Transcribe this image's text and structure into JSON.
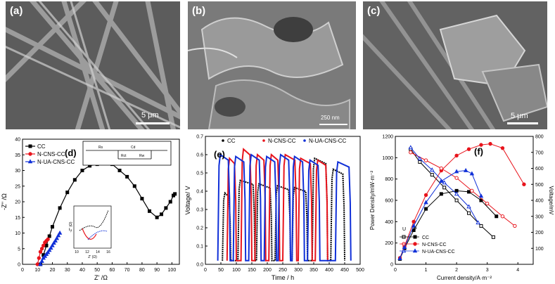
{
  "panels": {
    "a": {
      "label": "(a)",
      "scale": "5 μm"
    },
    "b": {
      "label": "(b)",
      "scale": "250 nm"
    },
    "c": {
      "label": "(c)",
      "scale": "5 μm"
    }
  },
  "chart_data": [
    {
      "panel": "(d)",
      "type": "line",
      "xlabel": "Z' /Ω",
      "ylabel": "-Z'' /Ω",
      "xlim": [
        0,
        105
      ],
      "ylim": [
        0,
        40
      ],
      "xticks": [
        "0",
        "10",
        "20",
        "30",
        "40",
        "50",
        "60",
        "70",
        "80",
        "90",
        "100"
      ],
      "yticks": [
        "0",
        "5",
        "10",
        "15",
        "20",
        "25",
        "30",
        "35",
        "40"
      ],
      "circuit_labels": [
        "Rs",
        "Cd",
        "Rct",
        "Rw"
      ],
      "series": [
        {
          "name": "CC",
          "color": "#000000",
          "marker": "square",
          "x": [
            12,
            14,
            16,
            18,
            20,
            25,
            30,
            35,
            40,
            45,
            50,
            55,
            60,
            65,
            70,
            75,
            80,
            85,
            90,
            93,
            96,
            99,
            101,
            102
          ],
          "y": [
            0,
            3,
            6,
            9,
            12,
            18,
            23,
            27,
            30,
            31.5,
            32,
            32.5,
            32,
            30,
            28,
            25,
            21,
            17,
            15,
            16,
            18,
            20,
            22,
            22.5
          ]
        },
        {
          "name": "N-CNS-CC",
          "color": "#e8141c",
          "marker": "circle",
          "x": [
            10,
            11,
            12,
            13,
            14,
            15,
            16,
            17
          ],
          "y": [
            0,
            2,
            4,
            5,
            6,
            7,
            7.5,
            8
          ]
        },
        {
          "name": "N-UA-CNS-CC",
          "color": "#1030d8",
          "marker": "triangle",
          "x": [
            12,
            13,
            14,
            15,
            16,
            17,
            18,
            19,
            20,
            21,
            22,
            23,
            24,
            25
          ],
          "y": [
            0,
            1,
            2,
            2.6,
            3.2,
            3.8,
            4.5,
            5.2,
            6,
            6.8,
            7.5,
            8.3,
            9.2,
            10
          ]
        }
      ],
      "inset": {
        "xlabel": "Z' (Ω)",
        "ylabel": "-Z'' (Ω)",
        "xticks": [
          "10",
          "12",
          "14",
          "16"
        ]
      }
    },
    {
      "panel": "(e)",
      "type": "line",
      "xlabel": "Time / h",
      "ylabel": "Voltage/ V",
      "xlim": [
        0,
        500
      ],
      "ylim": [
        0,
        0.7
      ],
      "xticks": [
        "0",
        "50",
        "100",
        "150",
        "200",
        "250",
        "300",
        "350",
        "400",
        "450",
        "500"
      ],
      "yticks": [
        "0.0",
        "0.1",
        "0.2",
        "0.3",
        "0.4",
        "0.5",
        "0.6",
        "0.7"
      ],
      "series": [
        {
          "name": "CC",
          "color": "#000000"
        },
        {
          "name": "N-CNS-CC",
          "color": "#e8141c"
        },
        {
          "name": "N-UA-CNS-CC",
          "color": "#1030d8"
        }
      ]
    },
    {
      "panel": "(f)",
      "type": "line",
      "xlabel": "Current density/A·m⁻²",
      "ylabel": "Power Density/mW·m⁻²",
      "ylabel2": "Voltage/mV",
      "xlim": [
        0,
        4.5
      ],
      "ylim": [
        0,
        1200
      ],
      "ylim2": [
        0,
        800
      ],
      "xticks": [
        "0",
        "1",
        "2",
        "3",
        "4"
      ],
      "yticks": [
        "0",
        "200",
        "400",
        "600",
        "800",
        "1000",
        "1200"
      ],
      "yticks2": [
        "100",
        "200",
        "300",
        "400",
        "500",
        "600",
        "700",
        "800"
      ],
      "legend_header": [
        "U",
        "P"
      ],
      "series": [
        {
          "name": "CC",
          "color": "#000000",
          "power_x": [
            0.15,
            0.3,
            0.6,
            1.0,
            1.5,
            2.0,
            2.4,
            2.8,
            3.3
          ],
          "power_y": [
            50,
            150,
            320,
            520,
            660,
            690,
            680,
            600,
            450
          ],
          "voltage_x": [
            0.5,
            0.8,
            1.2,
            1.6,
            2.0,
            2.4,
            2.8,
            3.2
          ],
          "voltage_y": [
            720,
            640,
            560,
            480,
            400,
            320,
            240,
            170
          ]
        },
        {
          "name": "N-CNS-CC",
          "color": "#e8141c",
          "power_x": [
            0.15,
            0.3,
            0.6,
            1.0,
            1.5,
            2.0,
            2.4,
            2.8,
            3.1,
            3.5,
            4.2
          ],
          "power_y": [
            60,
            170,
            400,
            650,
            880,
            1020,
            1080,
            1120,
            1130,
            1090,
            750
          ],
          "voltage_x": [
            0.5,
            1.0,
            1.5,
            2.0,
            2.5,
            3.0,
            3.5,
            3.9
          ],
          "voltage_y": [
            700,
            650,
            600,
            540,
            460,
            380,
            300,
            240
          ]
        },
        {
          "name": "N-UA-CNS-CC",
          "color": "#1030d8",
          "power_x": [
            0.15,
            0.3,
            0.6,
            1.0,
            1.5,
            2.0,
            2.3,
            2.5,
            2.8
          ],
          "power_y": [
            55,
            160,
            360,
            580,
            780,
            870,
            880,
            850,
            640
          ],
          "voltage_x": [
            0.5,
            0.8,
            1.2,
            1.6,
            2.0,
            2.4,
            2.7
          ],
          "voltage_y": [
            730,
            660,
            590,
            510,
            440,
            360,
            260
          ]
        }
      ]
    }
  ]
}
